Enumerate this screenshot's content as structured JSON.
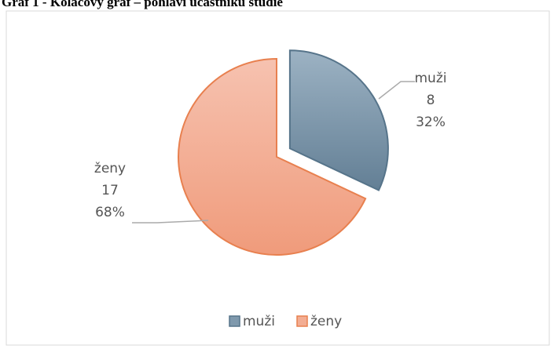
{
  "chart_data": {
    "type": "pie",
    "title": "Graf 1 - Koláčový graf – pohlaví účastníků studie",
    "categories": [
      "muži",
      "ženy"
    ],
    "values": [
      8,
      17
    ],
    "percent_labels": [
      "32%",
      "68%"
    ],
    "colors": [
      "#7f99ad",
      "#f3ad93"
    ],
    "legend": "bottom"
  }
}
